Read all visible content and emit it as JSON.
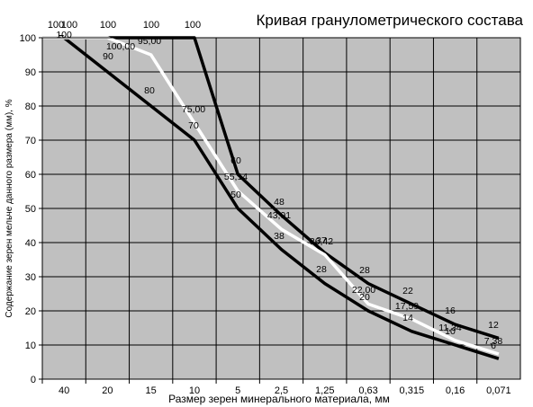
{
  "chart_data": {
    "type": "line",
    "title": "Кривая гранулометрического состава",
    "xlabel": "Размер зерен  минерального  материала,  мм",
    "ylabel": "Содержание зерен мельче данного размера (мм), %",
    "categories": [
      "40",
      "20",
      "15",
      "10",
      "5",
      "2,5",
      "1,25",
      "0,63",
      "0,315",
      "0,16",
      "0,071"
    ],
    "ylim": [
      0,
      100
    ],
    "yticks": [
      "0",
      "10",
      "20",
      "30",
      "40",
      "50",
      "60",
      "70",
      "80",
      "90",
      "100"
    ],
    "grid": true,
    "plot_background": "#c0c0c0",
    "top_labels": [
      "100",
      "100",
      "100",
      "100",
      "100"
    ],
    "series": [
      {
        "color": "#000000",
        "values": [
          100,
          90,
          80,
          70,
          50,
          38,
          28,
          20,
          14,
          10,
          6
        ],
        "data_labels": [
          "100",
          "90",
          "80",
          "70",
          "50",
          "38",
          "28",
          "20",
          "14",
          "10",
          "6"
        ]
      },
      {
        "color": "#000000",
        "values": [
          100,
          100,
          100,
          100,
          60,
          48,
          37,
          28,
          22,
          16,
          12
        ],
        "data_labels": [
          "",
          "",
          "",
          "",
          "60",
          "48",
          "37",
          "28",
          "22",
          "16",
          "12"
        ]
      },
      {
        "color": "#ffffff",
        "values": [
          100,
          100,
          95,
          75,
          55.14,
          43.91,
          36.42,
          22,
          17.59,
          11.34,
          7.38
        ],
        "data_labels": [
          "",
          "100,00",
          "95,00",
          "75,00",
          "55,14",
          "43,91",
          "36,42",
          "22,00",
          "17,59",
          "11,34",
          "7,38"
        ]
      }
    ]
  }
}
